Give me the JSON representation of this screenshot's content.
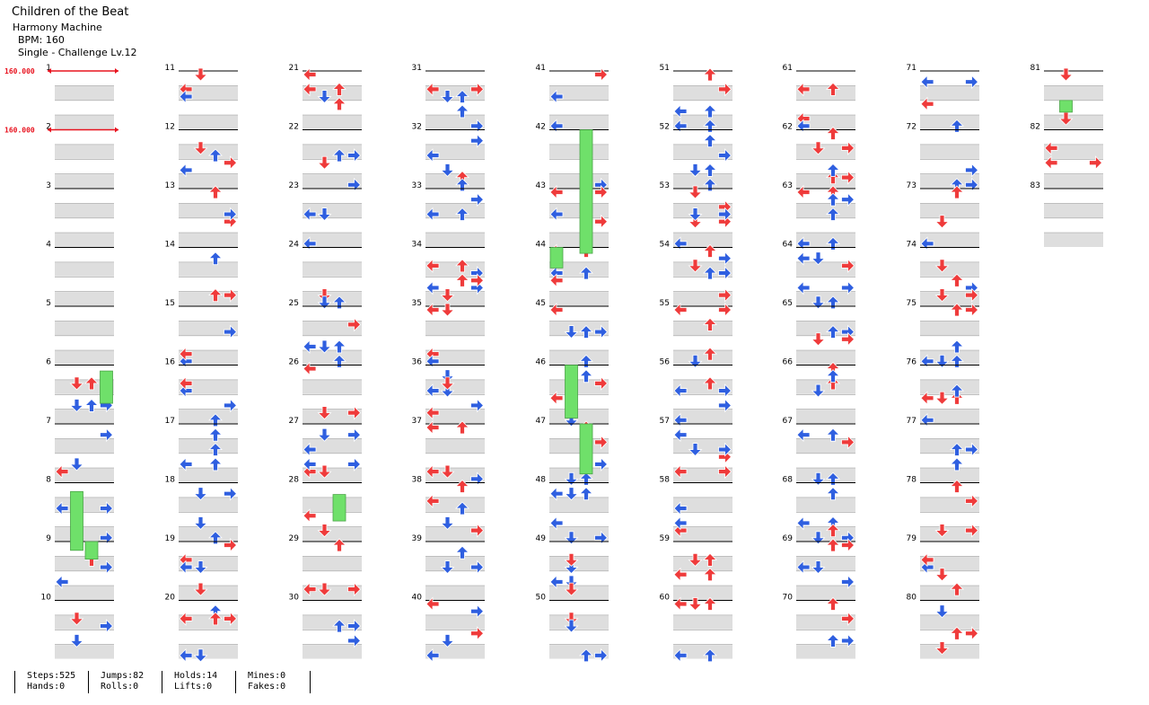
{
  "header": {
    "title": "Children of the Beat",
    "artist": "Harmony Machine",
    "bpm_text": "BPM: 160",
    "difficulty": "Single - Challenge Lv.12"
  },
  "bpm_changes": [
    {
      "measure": 1,
      "label": "160.000"
    },
    {
      "measure": 2,
      "label": "160.000"
    }
  ],
  "measures_total": 83,
  "measures_per_column": 10,
  "colors": {
    "quarter": "#ef3b3b",
    "eighth": "#2f5fe0",
    "hold": "#6fe06a",
    "bpm": "#e8131f"
  },
  "stats": [
    [
      "Steps:525",
      "Hands:0"
    ],
    [
      "Jumps:82",
      "Rolls:0"
    ],
    [
      "Holds:14",
      "Lifts:0"
    ],
    [
      "Mines:0",
      "Fakes:0"
    ]
  ]
}
